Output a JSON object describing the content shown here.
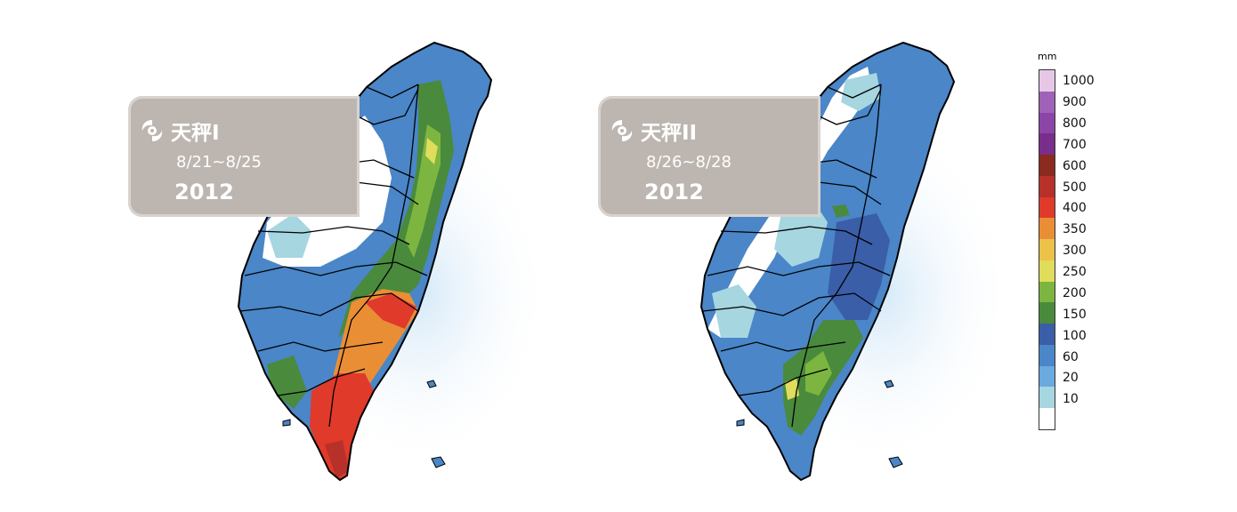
{
  "panels": [
    {
      "name": "天秤I",
      "dates": "8/21~8/25",
      "year": "2012",
      "zones": [
        "white",
        "lightblue",
        "blue",
        "green",
        "yellow-green",
        "orange",
        "red",
        "dark-red"
      ]
    },
    {
      "name": "天秤II",
      "dates": "8/26~8/28",
      "year": "2012",
      "zones": [
        "white",
        "lightblue",
        "blue",
        "dark-blue",
        "green",
        "yellow-green"
      ]
    }
  ],
  "legend": {
    "unit": "mm",
    "classes": [
      {
        "label": "1000",
        "color": "#e6c8e6"
      },
      {
        "label": "900",
        "color": "#a062b8"
      },
      {
        "label": "800",
        "color": "#8b45a6"
      },
      {
        "label": "700",
        "color": "#7a2e8c"
      },
      {
        "label": "600",
        "color": "#8b2a1e"
      },
      {
        "label": "500",
        "color": "#b8302a"
      },
      {
        "label": "400",
        "color": "#e03a2a"
      },
      {
        "label": "350",
        "color": "#ea8e36"
      },
      {
        "label": "300",
        "color": "#ecc248"
      },
      {
        "label": "250",
        "color": "#e0dc5c"
      },
      {
        "label": "200",
        "color": "#7cb640"
      },
      {
        "label": "150",
        "color": "#4a8a3c"
      },
      {
        "label": "100",
        "color": "#3a5ea8"
      },
      {
        "label": "60",
        "color": "#4a86c8"
      },
      {
        "label": "20",
        "color": "#6aaade"
      },
      {
        "label": "10",
        "color": "#a6d6e0"
      },
      {
        "label": "",
        "color": "#ffffff"
      }
    ]
  },
  "colors": {
    "card": "#bdb6b0",
    "sea_glow": "#cfe6f7",
    "border": "#000000"
  }
}
